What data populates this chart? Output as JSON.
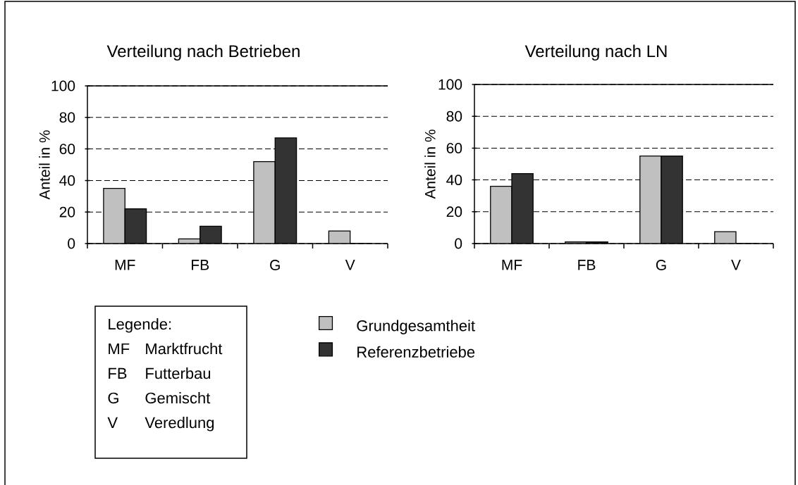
{
  "chart_data": [
    {
      "type": "bar",
      "title": "Verteilung nach Betrieben",
      "ylabel": "Anteil in %",
      "categories": [
        "MF",
        "FB",
        "G",
        "V"
      ],
      "series": [
        {
          "name": "Grundgesamtheit",
          "color": "#c0c0c0",
          "values": [
            35,
            3,
            52,
            8
          ]
        },
        {
          "name": "Referenzbetriebe",
          "color": "#333333",
          "values": [
            22,
            11,
            67,
            0
          ]
        }
      ],
      "ylim": [
        0,
        100
      ],
      "yticks": [
        0,
        20,
        40,
        60,
        80,
        100
      ],
      "grid": "y",
      "legend": "bottom",
      "annotations": [
        "Legende:",
        "MF",
        "Marktfrucht",
        "FB",
        "Futterbau",
        "G",
        "Gemischt",
        "V",
        "Veredlung"
      ]
    },
    {
      "type": "bar",
      "title": "Verteilung nach LN",
      "ylabel": "Anteil in %",
      "categories": [
        "MF",
        "FB",
        "G",
        "V"
      ],
      "series": [
        {
          "color": "#c0c0c0",
          "values": [
            36,
            1,
            55,
            7.5
          ]
        },
        {
          "color": "#333333",
          "values": [
            44,
            1,
            55,
            0
          ]
        }
      ],
      "ylim": [
        0,
        100
      ],
      "yticks": [
        0,
        20,
        40,
        60,
        80,
        100
      ],
      "grid": "y"
    }
  ]
}
